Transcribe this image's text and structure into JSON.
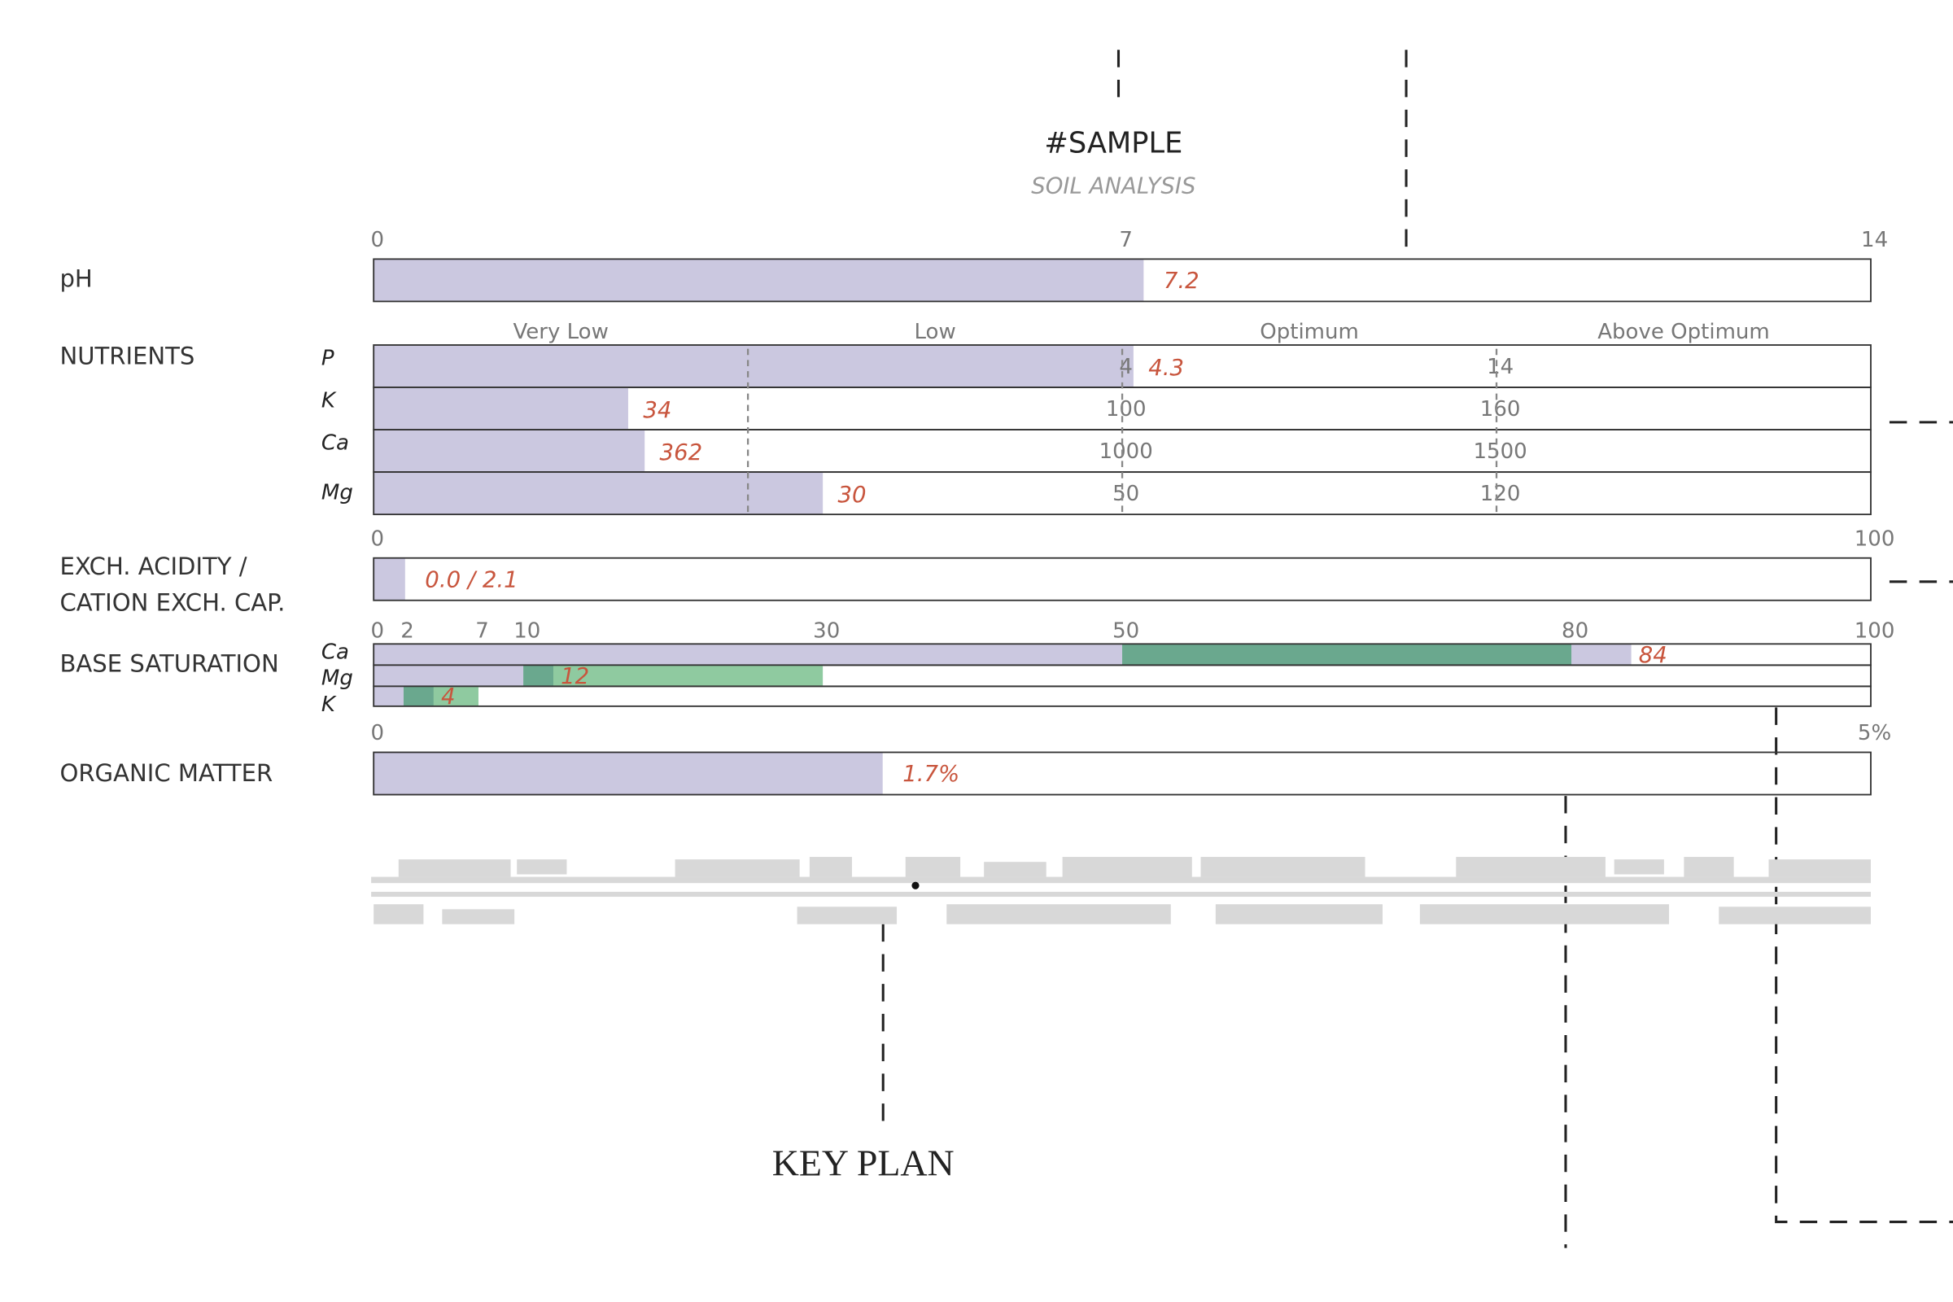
{
  "header": {
    "title": "#SAMPLE",
    "subtitle": "SOIL ANALYSIS"
  },
  "ph": {
    "label": "pH",
    "ticks": [
      0,
      7,
      14
    ],
    "value": 7.2
  },
  "nutrients": {
    "label": "NUTRIENTS",
    "classes": [
      "Very Low",
      "Low",
      "Optimum",
      "Above Optimum"
    ],
    "rows": [
      {
        "name": "P",
        "value": 4.3,
        "ticks": [
          4,
          14
        ]
      },
      {
        "name": "K",
        "value": 34,
        "ticks": [
          100,
          160
        ]
      },
      {
        "name": "Ca",
        "value": 362,
        "ticks": [
          1000,
          1500
        ]
      },
      {
        "name": "Mg",
        "value": 30,
        "ticks": [
          50,
          120
        ]
      }
    ]
  },
  "exchange": {
    "label": [
      "EXCH. ACIDITY /",
      "CATION EXCH. CAP."
    ],
    "ticks": [
      0,
      100
    ],
    "value": 2.1,
    "value_label": "0.0 / 2.1"
  },
  "base_saturation": {
    "label": "BASE SATURATION",
    "ticks": [
      0,
      2,
      7,
      10,
      30,
      50,
      80,
      100
    ],
    "rows": [
      {
        "name": "Ca",
        "value": 84,
        "range": [
          50,
          80
        ]
      },
      {
        "name": "Mg",
        "value": 12,
        "range": [
          10,
          30
        ]
      },
      {
        "name": "K",
        "value": 4,
        "range": [
          2,
          7
        ]
      }
    ]
  },
  "organic_matter": {
    "label": "ORGANIC MATTER",
    "ticks": [
      0,
      {
        "value": 5,
        "label": "5%"
      }
    ],
    "value": 1.7,
    "value_label": "1.7%"
  },
  "key_plan": {
    "title": "KEY PLAN"
  }
}
